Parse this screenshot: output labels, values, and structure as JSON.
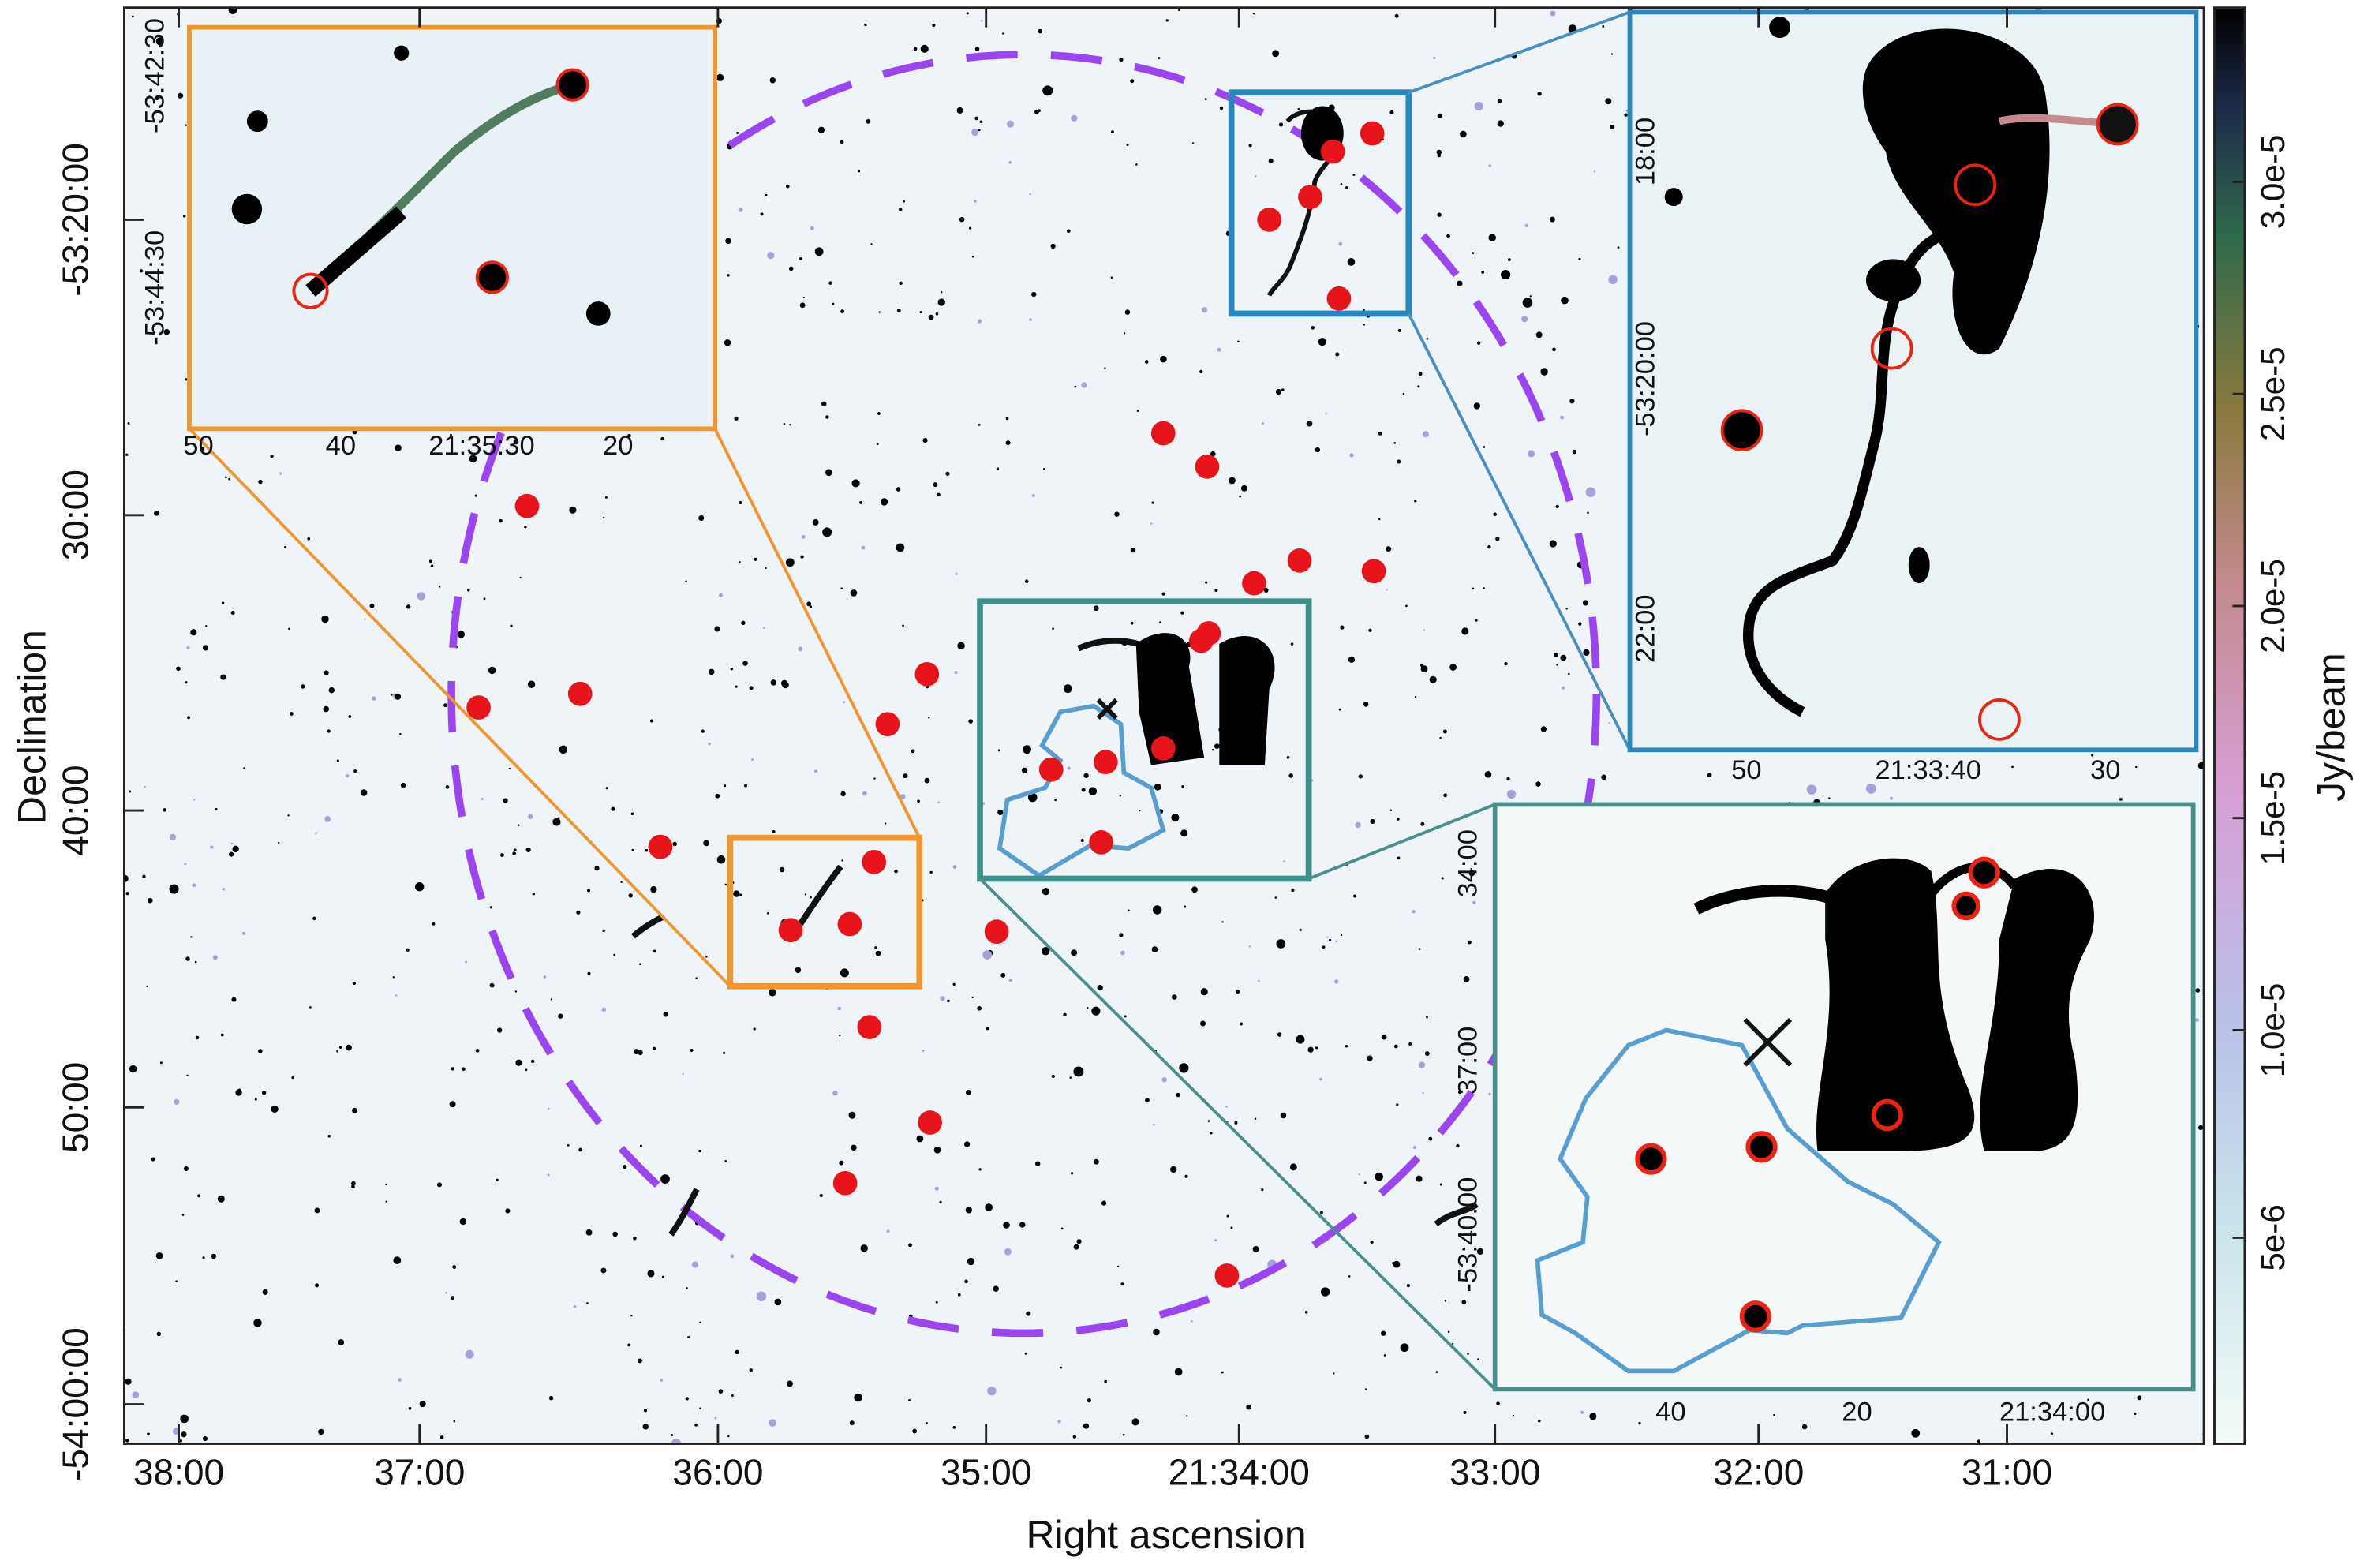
{
  "main": {
    "x_axis_label": "Right ascension",
    "y_axis_label": "Declination",
    "x_ticks": [
      "38:00",
      "37:00",
      "36:00",
      "35:00",
      "21:34:00",
      "33:00",
      "32:00",
      "31:00"
    ],
    "y_ticks": [
      "-53:20:00",
      "30:00",
      "40:00",
      "50:00",
      "-54:00:00"
    ]
  },
  "colorbar": {
    "label": "Jy/beam",
    "ticks": [
      "5e-6",
      "1.0e-5",
      "1.5e-5",
      "2.0e-5",
      "2.5e-5",
      "3.0e-5"
    ]
  },
  "insets": [
    {
      "x_ticks": [
        "50",
        "40",
        "21:35:30",
        "20"
      ],
      "y_ticks": [
        "-53:42:30",
        "-53:44:30"
      ]
    },
    {
      "x_ticks": [
        "50",
        "21:33:40",
        "30"
      ],
      "y_ticks": [
        "18:00",
        "-53:20:00",
        "22:00"
      ]
    },
    {
      "x_ticks": [
        "40",
        "20",
        "21:34:00"
      ],
      "y_ticks": [
        "34:00",
        "37:00",
        "-53:40:00"
      ]
    }
  ]
}
